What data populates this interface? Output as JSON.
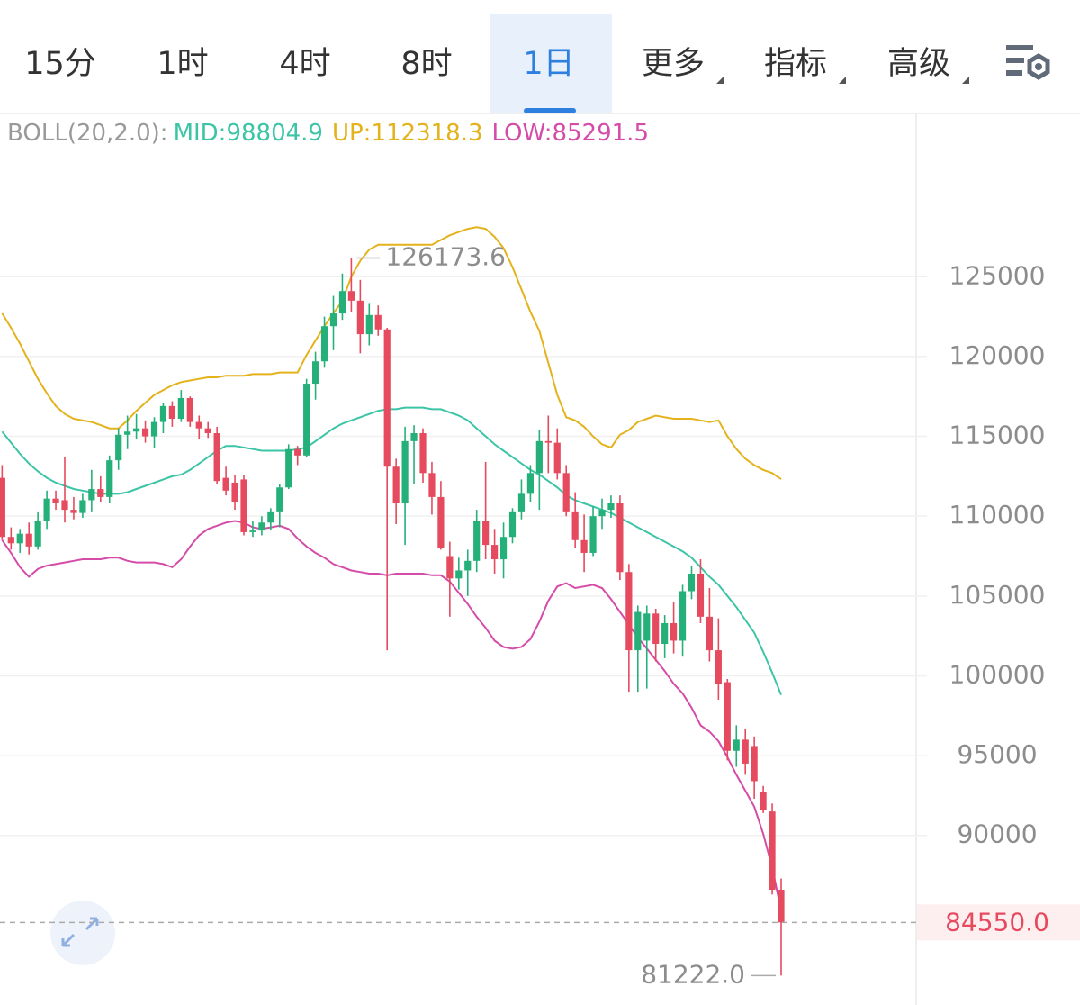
{
  "tabs": [
    {
      "label": "15分"
    },
    {
      "label": "1时"
    },
    {
      "label": "4时"
    },
    {
      "label": "8时"
    },
    {
      "label": "1日",
      "selected": true
    },
    {
      "label": "更多",
      "dropdown": true
    },
    {
      "label": "指标",
      "dropdown": true
    },
    {
      "label": "高级",
      "dropdown": true
    }
  ],
  "chart_data": {
    "type": "candlestick",
    "indicator": "BOLL(20,2.0):",
    "up_color": "#25b07a",
    "down_color": "#e64a5e",
    "ylim": [
      80000,
      135000
    ],
    "yticks": [
      90000,
      95000,
      100000,
      105000,
      110000,
      115000,
      120000,
      125000
    ],
    "grid": true,
    "open": [
      112400,
      108700,
      108300,
      108900,
      108100,
      109700,
      111100,
      111000,
      110400,
      110200,
      111000,
      111700,
      111200,
      113500,
      115100,
      115300,
      115500,
      115000,
      115900,
      116900,
      116100,
      117400,
      115900,
      115500,
      115200,
      112400,
      112100,
      112300,
      109000,
      109100,
      109600,
      110300,
      111800,
      114200,
      113800,
      118300,
      119700,
      121900,
      122700,
      124100,
      123500,
      121400,
      122600,
      121700,
      113100,
      110800,
      114700,
      115200,
      112700,
      111200,
      107500,
      106100,
      106600,
      107200,
      109700,
      108200,
      107300,
      108700,
      110300,
      111400,
      112700,
      114700,
      114600,
      112700,
      110300,
      108500,
      107700,
      110000,
      110400,
      110800,
      106500,
      101600,
      102200,
      103900,
      102000,
      103300,
      102200,
      105300,
      106400,
      103700,
      101600,
      99600,
      95300,
      96000,
      95600,
      92700,
      91500,
      86600
    ],
    "high": [
      113200,
      109300,
      109200,
      109600,
      110300,
      111600,
      111600,
      113700,
      111200,
      111400,
      112900,
      112500,
      113800,
      115500,
      116300,
      116400,
      116000,
      116200,
      117100,
      117200,
      117900,
      117500,
      116300,
      115900,
      115600,
      113100,
      112600,
      112600,
      109700,
      110000,
      110500,
      112000,
      114500,
      114400,
      118600,
      120300,
      122500,
      123800,
      125200,
      126173.6,
      124800,
      123300,
      123200,
      121800,
      113600,
      115600,
      115700,
      115500,
      113400,
      112200,
      108400,
      107400,
      107900,
      110400,
      113400,
      109200,
      109600,
      110500,
      112300,
      113200,
      115400,
      116300,
      115500,
      113200,
      111500,
      110100,
      110600,
      111100,
      111300,
      111300,
      107000,
      104400,
      104400,
      104200,
      103800,
      104600,
      105700,
      106900,
      107300,
      105500,
      103600,
      99800,
      96900,
      96700,
      96200,
      93100,
      92000,
      87300
    ],
    "low": [
      108500,
      107900,
      107700,
      107600,
      107900,
      109200,
      110400,
      109600,
      109800,
      109900,
      110300,
      110900,
      110800,
      112900,
      114200,
      114800,
      114600,
      114300,
      115200,
      115600,
      115900,
      115600,
      114800,
      114900,
      112000,
      111300,
      110400,
      108800,
      108700,
      108800,
      109100,
      109300,
      111700,
      113200,
      113700,
      117300,
      119300,
      120400,
      122300,
      122800,
      120200,
      120700,
      121300,
      101600,
      109500,
      108200,
      112000,
      112100,
      110100,
      107900,
      103700,
      105400,
      105000,
      106500,
      107300,
      106400,
      106100,
      108300,
      109800,
      110900,
      110400,
      112700,
      112300,
      110000,
      108000,
      106500,
      107500,
      109200,
      109900,
      106000,
      99000,
      99000,
      99200,
      100900,
      101100,
      101400,
      101200,
      104800,
      103300,
      100900,
      98500,
      94700,
      94300,
      93800,
      92300,
      91400,
      86300,
      81222
    ],
    "close": [
      108700,
      108300,
      108900,
      108100,
      109700,
      111100,
      110800,
      110400,
      110200,
      111000,
      111700,
      111200,
      113500,
      115100,
      115300,
      115500,
      115000,
      115900,
      116900,
      116100,
      117400,
      115900,
      115500,
      115200,
      112200,
      111600,
      110900,
      109000,
      109100,
      109600,
      110300,
      111800,
      114200,
      113800,
      118300,
      119700,
      121900,
      122700,
      124100,
      123500,
      121400,
      122600,
      121700,
      113100,
      110800,
      114700,
      115200,
      112700,
      111200,
      108000,
      106100,
      106600,
      107200,
      109700,
      108200,
      107300,
      108700,
      110300,
      111400,
      112700,
      114700,
      114600,
      112700,
      110300,
      108500,
      107700,
      110000,
      110400,
      110800,
      106500,
      101600,
      104000,
      103900,
      102000,
      103300,
      102200,
      105300,
      106400,
      103700,
      101600,
      99500,
      95300,
      96000,
      94500,
      93400,
      91600,
      86600,
      84550
    ],
    "bands": [
      {
        "label": "MID:98804.9",
        "color": "#3cc4a6",
        "values": [
          115300,
          114600,
          113900,
          113300,
          112800,
          112400,
          112100,
          111900,
          111700,
          111600,
          111500,
          111400,
          111400,
          111400,
          111500,
          111700,
          111900,
          112100,
          112300,
          112500,
          112600,
          112900,
          113300,
          113700,
          114100,
          114400,
          114400,
          114300,
          114200,
          114100,
          114100,
          114100,
          114100,
          114200,
          114300,
          114700,
          115100,
          115500,
          115800,
          116000,
          116200,
          116400,
          116600,
          116700,
          116700,
          116800,
          116800,
          116800,
          116700,
          116700,
          116500,
          116300,
          116000,
          115500,
          115000,
          114500,
          114100,
          113700,
          113300,
          112900,
          112600,
          112200,
          111800,
          111300,
          111000,
          110800,
          110600,
          110400,
          110200,
          109900,
          109600,
          109300,
          109000,
          108700,
          108400,
          108100,
          107800,
          107400,
          106800,
          106200,
          105700,
          105000,
          104300,
          103500,
          102700,
          101500,
          100200,
          98804.9
        ]
      },
      {
        "label": "UP:112318.3",
        "color": "#e3b21c",
        "values": [
          122700,
          121800,
          120800,
          119700,
          118600,
          117700,
          116900,
          116400,
          116100,
          116000,
          115900,
          115700,
          115500,
          115500,
          116000,
          116600,
          117100,
          117600,
          117900,
          118200,
          118400,
          118500,
          118600,
          118700,
          118700,
          118800,
          118800,
          118800,
          118900,
          118900,
          118900,
          119000,
          119000,
          119000,
          120100,
          121000,
          121900,
          122700,
          123500,
          125000,
          126000,
          126700,
          127000,
          127000,
          127000,
          127000,
          127000,
          127000,
          127000,
          127300,
          127600,
          127800,
          128000,
          128100,
          128000,
          127500,
          126800,
          125600,
          124200,
          122800,
          121600,
          119600,
          117600,
          116200,
          116000,
          115600,
          115000,
          114500,
          114300,
          115100,
          115400,
          115900,
          116100,
          116300,
          116200,
          116100,
          116100,
          116100,
          116000,
          115900,
          116000,
          115000,
          114200,
          113600,
          113200,
          112900,
          112700,
          112318.3
        ]
      },
      {
        "label": "LOW:85291.5",
        "color": "#d44ca8",
        "values": [
          108500,
          107700,
          106800,
          106200,
          106700,
          106900,
          107000,
          107100,
          107200,
          107300,
          107300,
          107300,
          107400,
          107400,
          107200,
          107100,
          107100,
          107100,
          107000,
          106800,
          107300,
          108100,
          108800,
          109200,
          109400,
          109600,
          109700,
          109600,
          109300,
          109200,
          109300,
          109400,
          109200,
          108600,
          108100,
          107700,
          107400,
          107000,
          106800,
          106600,
          106500,
          106400,
          106400,
          106300,
          106400,
          106400,
          106400,
          106400,
          106300,
          106300,
          105900,
          105200,
          104500,
          103700,
          103000,
          102200,
          101800,
          101700,
          101800,
          102300,
          103400,
          104700,
          105600,
          105800,
          105500,
          105600,
          105700,
          105500,
          104800,
          104000,
          103200,
          102400,
          101700,
          101000,
          100300,
          99500,
          98900,
          98000,
          96900,
          96500,
          95900,
          94900,
          93800,
          92800,
          91800,
          90100,
          88000,
          85291.5
        ]
      }
    ],
    "high_label": 126173.6,
    "low_label": {
      "value": 81222,
      "label": "81222.0"
    },
    "last_price": {
      "value": 84550,
      "label": "84550.0"
    }
  }
}
